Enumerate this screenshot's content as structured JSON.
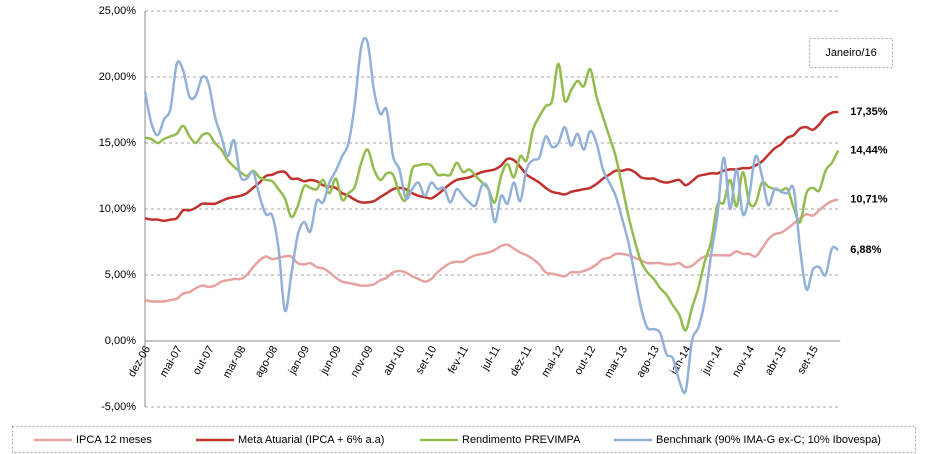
{
  "chart_data": {
    "type": "line",
    "annotation": "Janeiro/16",
    "categories": [
      "dez-06",
      null,
      null,
      null,
      null,
      "mai-07",
      null,
      null,
      null,
      null,
      "out-07",
      null,
      null,
      null,
      null,
      "mar-08",
      null,
      null,
      null,
      null,
      "ago-08",
      null,
      null,
      null,
      null,
      "jan-09",
      null,
      null,
      null,
      null,
      "jun-09",
      null,
      null,
      null,
      null,
      "nov-09",
      null,
      null,
      null,
      null,
      "abr-10",
      null,
      null,
      null,
      null,
      "set-10",
      null,
      null,
      null,
      null,
      "fev-11",
      null,
      null,
      null,
      null,
      "jul-11",
      null,
      null,
      null,
      null,
      "dez-11",
      null,
      null,
      null,
      null,
      "mai-12",
      null,
      null,
      null,
      null,
      "out-12",
      null,
      null,
      null,
      null,
      "mar-13",
      null,
      null,
      null,
      null,
      "ago-13",
      null,
      null,
      null,
      null,
      "jan-14",
      null,
      null,
      null,
      null,
      "jun-14",
      null,
      null,
      null,
      null,
      "nov-14",
      null,
      null,
      null,
      null,
      "abr-15",
      null,
      null,
      null,
      null,
      "set-15",
      null,
      null,
      null,
      null
    ],
    "ylim": [
      -5,
      25
    ],
    "yticks": [
      {
        "value": -5,
        "label": "-5,00%"
      },
      {
        "value": 0,
        "label": "0,00%"
      },
      {
        "value": 5,
        "label": "5,00%"
      },
      {
        "value": 10,
        "label": "10,00%"
      },
      {
        "value": 15,
        "label": "15,00%"
      },
      {
        "value": 20,
        "label": "20,00%"
      },
      {
        "value": 25,
        "label": "25,00%"
      }
    ],
    "grid": true,
    "legend": "bottom",
    "series": [
      {
        "name": "IPCA 12 meses",
        "color": "#e6a2a0",
        "label_color": "#e6a2a0",
        "values": [
          3.1,
          3.0,
          3.0,
          3.0,
          3.1,
          3.2,
          3.6,
          3.7,
          4.0,
          4.2,
          4.1,
          4.2,
          4.5,
          4.6,
          4.7,
          4.7,
          5.0,
          5.6,
          6.1,
          6.4,
          6.2,
          6.3,
          6.4,
          6.4,
          5.9,
          5.8,
          5.9,
          5.6,
          5.5,
          5.2,
          4.8,
          4.5,
          4.4,
          4.3,
          4.2,
          4.2,
          4.3,
          4.6,
          4.8,
          5.2,
          5.3,
          5.2,
          4.9,
          4.7,
          4.5,
          4.7,
          5.2,
          5.6,
          5.9,
          6.0,
          6.0,
          6.3,
          6.5,
          6.6,
          6.7,
          6.9,
          7.2,
          7.3,
          7.0,
          6.7,
          6.5,
          6.2,
          5.8,
          5.2,
          5.1,
          5.0,
          4.9,
          5.2,
          5.2,
          5.3,
          5.5,
          5.8,
          6.2,
          6.3,
          6.6,
          6.6,
          6.5,
          6.3,
          6.1,
          5.9,
          5.9,
          5.9,
          5.8,
          5.8,
          5.9,
          5.6,
          5.7,
          6.1,
          6.4,
          6.5,
          6.5,
          6.5,
          6.5,
          6.8,
          6.6,
          6.6,
          6.4,
          7.0,
          7.7,
          8.1,
          8.2,
          8.5,
          8.9,
          9.3,
          9.6,
          9.5,
          9.9,
          10.3,
          10.6,
          10.71
        ],
        "value_labels": [
          null,
          null,
          null,
          null,
          null,
          null,
          null,
          null,
          null,
          null,
          null,
          null,
          null,
          null,
          null,
          null,
          null,
          null,
          null,
          null,
          null,
          null,
          null,
          null,
          null,
          null,
          null,
          null,
          null,
          null,
          null,
          null,
          null,
          null,
          null,
          null,
          null,
          null,
          null,
          null,
          null,
          null,
          null,
          null,
          null,
          null,
          null,
          null,
          null,
          null,
          null,
          null,
          null,
          null,
          null,
          null,
          null,
          null,
          null,
          null,
          null,
          null,
          null,
          null,
          null,
          null,
          null,
          null,
          null,
          null,
          null,
          null,
          null,
          null,
          null,
          null,
          null,
          null,
          null,
          null,
          null,
          null,
          null,
          null,
          null,
          null,
          null,
          null,
          null,
          null,
          null,
          null,
          null,
          null,
          null,
          null,
          null,
          null,
          null,
          null,
          null,
          null,
          null,
          null,
          null,
          null,
          null,
          null,
          null,
          "10,71%"
        ]
      },
      {
        "name": "Meta Atuarial (IPCA + 6% a.a)",
        "color": "#c0302c",
        "label_color": "#c0302c",
        "values": [
          9.3,
          9.2,
          9.2,
          9.1,
          9.2,
          9.3,
          9.9,
          9.9,
          10.1,
          10.4,
          10.4,
          10.4,
          10.6,
          10.8,
          10.9,
          11.0,
          11.2,
          11.6,
          12.0,
          12.5,
          12.6,
          12.8,
          12.8,
          12.3,
          12.3,
          12.1,
          12.2,
          12.1,
          11.8,
          11.7,
          11.6,
          11.2,
          11.0,
          10.7,
          10.5,
          10.5,
          10.6,
          10.9,
          11.2,
          11.5,
          11.6,
          11.5,
          11.2,
          11.0,
          10.9,
          10.8,
          11.1,
          11.5,
          11.9,
          12.2,
          12.3,
          12.4,
          12.6,
          12.8,
          12.9,
          13.0,
          13.3,
          13.8,
          13.7,
          13.2,
          12.6,
          12.3,
          12.0,
          11.6,
          11.3,
          11.2,
          11.1,
          11.3,
          11.4,
          11.5,
          11.6,
          11.9,
          12.3,
          12.6,
          12.9,
          12.9,
          13.0,
          12.8,
          12.4,
          12.3,
          12.3,
          12.1,
          12.0,
          12.1,
          12.2,
          11.8,
          12.1,
          12.5,
          12.6,
          12.7,
          12.7,
          12.9,
          13.0,
          13.0,
          13.1,
          13.1,
          13.3,
          13.6,
          14.1,
          14.6,
          14.9,
          15.4,
          15.6,
          16.1,
          16.2,
          16.0,
          16.4,
          17.0,
          17.3,
          17.35
        ],
        "value_labels": [
          null,
          null,
          null,
          null,
          null,
          null,
          null,
          null,
          null,
          null,
          null,
          null,
          null,
          null,
          null,
          null,
          null,
          null,
          null,
          null,
          null,
          null,
          null,
          null,
          null,
          null,
          null,
          null,
          null,
          null,
          null,
          null,
          null,
          null,
          null,
          null,
          null,
          null,
          null,
          null,
          null,
          null,
          null,
          null,
          null,
          null,
          null,
          null,
          null,
          null,
          null,
          null,
          null,
          null,
          null,
          null,
          null,
          null,
          null,
          null,
          null,
          null,
          null,
          null,
          null,
          null,
          null,
          null,
          null,
          null,
          null,
          null,
          null,
          null,
          null,
          null,
          null,
          null,
          null,
          null,
          null,
          null,
          null,
          null,
          null,
          null,
          null,
          null,
          null,
          null,
          null,
          null,
          null,
          null,
          null,
          null,
          null,
          null,
          null,
          null,
          null,
          null,
          null,
          null,
          null,
          null,
          null,
          null,
          null,
          "17,35%"
        ]
      },
      {
        "name": "Rendimento PREVIMPA",
        "color": "#94bb4e",
        "label_color": "#94bb4e",
        "values": [
          15.4,
          15.3,
          15.0,
          15.3,
          15.5,
          15.7,
          16.3,
          15.5,
          15.0,
          15.6,
          15.7,
          15.0,
          14.5,
          13.7,
          13.2,
          12.8,
          12.5,
          12.9,
          12.4,
          12.2,
          12.1,
          11.5,
          10.8,
          9.4,
          10.2,
          11.7,
          11.6,
          11.5,
          12.2,
          11.2,
          12.3,
          10.7,
          11.2,
          11.7,
          13.5,
          14.5,
          13.0,
          12.2,
          12.7,
          12.6,
          11.2,
          10.7,
          13.0,
          13.3,
          13.4,
          13.3,
          12.6,
          12.6,
          12.6,
          13.5,
          12.8,
          13.0,
          12.5,
          12.0,
          11.5,
          10.5,
          12.5,
          13.4,
          12.4,
          14.0,
          13.7,
          16.0,
          17.0,
          17.8,
          18.2,
          21.0,
          18.2,
          19.0,
          19.7,
          19.3,
          20.6,
          18.5,
          17.0,
          15.5,
          14.0,
          11.8,
          9.5,
          7.6,
          6.0,
          5.2,
          4.7,
          4.0,
          3.5,
          2.7,
          2.0,
          0.8,
          2.5,
          4.0,
          6.0,
          7.5,
          10.3,
          10.5,
          12.2,
          10.2,
          12.8,
          10.5,
          10.4,
          12.0,
          11.7,
          11.5,
          11.4,
          11.5,
          10.1,
          9.0,
          11.2,
          11.6,
          11.4,
          12.9,
          13.5,
          14.44
        ],
        "value_labels": [
          null,
          null,
          null,
          null,
          null,
          null,
          null,
          null,
          null,
          null,
          null,
          null,
          null,
          null,
          null,
          null,
          null,
          null,
          null,
          null,
          null,
          null,
          null,
          null,
          null,
          null,
          null,
          null,
          null,
          null,
          null,
          null,
          null,
          null,
          null,
          null,
          null,
          null,
          null,
          null,
          null,
          null,
          null,
          null,
          null,
          null,
          null,
          null,
          null,
          null,
          null,
          null,
          null,
          null,
          null,
          null,
          null,
          null,
          null,
          null,
          null,
          null,
          null,
          null,
          null,
          null,
          null,
          null,
          null,
          null,
          null,
          null,
          null,
          null,
          null,
          null,
          null,
          null,
          null,
          null,
          null,
          null,
          null,
          null,
          null,
          null,
          null,
          null,
          null,
          null,
          null,
          null,
          null,
          null,
          null,
          null,
          null,
          null,
          null,
          null,
          null,
          null,
          null,
          null,
          null,
          null,
          null,
          null,
          null,
          "14,44%"
        ]
      },
      {
        "name": "Benchmark (90% IMA-G ex-C; 10% Ibovespa)",
        "color": "#93b1d8",
        "label_color": "#4f7fbf",
        "values": [
          18.9,
          16.5,
          15.6,
          16.8,
          17.6,
          21.0,
          20.5,
          18.5,
          18.6,
          20.0,
          19.5,
          17.0,
          15.5,
          14.0,
          15.2,
          12.5,
          12.3,
          12.8,
          11.0,
          9.6,
          9.5,
          7.0,
          2.3,
          5.0,
          8.0,
          9.0,
          8.3,
          10.6,
          10.5,
          12.0,
          12.9,
          14.0,
          15.0,
          18.0,
          22.3,
          22.6,
          19.0,
          17.2,
          17.5,
          14.0,
          13.0,
          10.8,
          11.5,
          12.0,
          11.0,
          12.0,
          11.5,
          11.6,
          10.5,
          11.5,
          11.0,
          10.5,
          10.3,
          11.8,
          11.5,
          9.0,
          11.0,
          10.4,
          12.0,
          10.6,
          13.0,
          13.7,
          13.9,
          15.5,
          14.7,
          15.0,
          16.2,
          14.8,
          15.7,
          14.5,
          15.9,
          15.0,
          13.0,
          12.0,
          11.0,
          9.3,
          7.5,
          5.0,
          2.5,
          1.0,
          0.9,
          0.6,
          -1.0,
          -1.3,
          -3.0,
          -3.8,
          0.0,
          1.0,
          3.0,
          6.5,
          9.5,
          13.9,
          10.0,
          13.0,
          9.6,
          11.0,
          14.0,
          12.5,
          10.3,
          11.5,
          11.3,
          11.2,
          11.5,
          7.0,
          3.9,
          5.4,
          5.6,
          5.0,
          7.0,
          6.88
        ],
        "value_labels": [
          null,
          null,
          null,
          null,
          null,
          null,
          null,
          null,
          null,
          null,
          null,
          null,
          null,
          null,
          null,
          null,
          null,
          null,
          null,
          null,
          null,
          null,
          null,
          null,
          null,
          null,
          null,
          null,
          null,
          null,
          null,
          null,
          null,
          null,
          null,
          null,
          null,
          null,
          null,
          null,
          null,
          null,
          null,
          null,
          null,
          null,
          null,
          null,
          null,
          null,
          null,
          null,
          null,
          null,
          null,
          null,
          null,
          null,
          null,
          null,
          null,
          null,
          null,
          null,
          null,
          null,
          null,
          null,
          null,
          null,
          null,
          null,
          null,
          null,
          null,
          null,
          null,
          null,
          null,
          null,
          null,
          null,
          null,
          null,
          null,
          null,
          null,
          null,
          null,
          null,
          null,
          null,
          null,
          null,
          null,
          null,
          null,
          null,
          null,
          null,
          null,
          null,
          null,
          null,
          null,
          null,
          null,
          null,
          null,
          "6,88%"
        ]
      }
    ]
  }
}
